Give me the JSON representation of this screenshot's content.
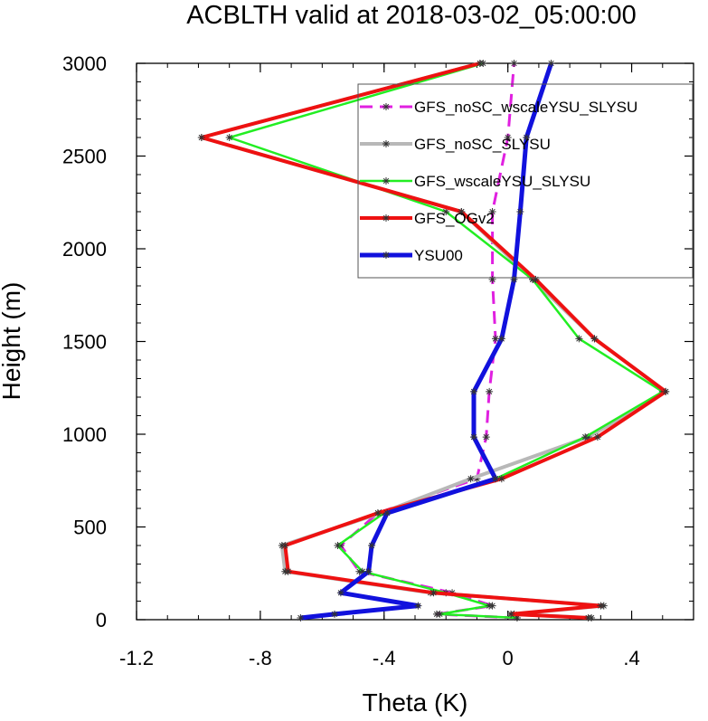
{
  "chart_data": {
    "type": "line",
    "title": "ACBLTH valid at 2018-03-02_05:00:00",
    "xlabel": "Theta (K)",
    "ylabel": "Height (m)",
    "xlim": [
      -1.2,
      0.6
    ],
    "ylim": [
      0,
      3000
    ],
    "x_ticks": [
      {
        "value": -1.2,
        "label": "-1.2"
      },
      {
        "value": -0.8,
        "label": "-.8"
      },
      {
        "value": -0.4,
        "label": "-.4"
      },
      {
        "value": 0,
        "label": "0"
      },
      {
        "value": 0.4,
        "label": ".4"
      }
    ],
    "y_ticks": [
      {
        "value": 0,
        "label": "0"
      },
      {
        "value": 500,
        "label": "500"
      },
      {
        "value": 1000,
        "label": "1000"
      },
      {
        "value": 1500,
        "label": "1500"
      },
      {
        "value": 2000,
        "label": "2000"
      },
      {
        "value": 2500,
        "label": "2500"
      },
      {
        "value": 3000,
        "label": "3000"
      }
    ],
    "grid": false,
    "legend_position": "top-right",
    "heights": [
      10,
      30,
      75,
      145,
      260,
      400,
      575,
      760,
      985,
      1230,
      1515,
      1835,
      2200,
      2600,
      3000
    ],
    "series": [
      {
        "name": "GFS_noSC_wscaleYSU_SLYSU",
        "color": "#e020e0",
        "dash": "14,8",
        "width": 3,
        "values": [
          0.03,
          -0.23,
          -0.05,
          -0.18,
          -0.48,
          -0.54,
          -0.42,
          -0.1,
          -0.07,
          -0.06,
          -0.04,
          -0.05,
          -0.05,
          0.0,
          0.02
        ]
      },
      {
        "name": "GFS_noSC_SLYSU",
        "color": "#b8b8b8",
        "dash": "",
        "width": 4,
        "values": [
          0.27,
          0.02,
          0.31,
          -0.25,
          -0.72,
          -0.73,
          -0.41,
          -0.12,
          0.26,
          0.51,
          0.28,
          0.08,
          -0.15,
          -0.99,
          -0.09
        ]
      },
      {
        "name": "GFS_wscaleYSU_SLYSU",
        "color": "#22ee22",
        "dash": "",
        "width": 2.5,
        "values": [
          0.03,
          -0.22,
          -0.06,
          -0.2,
          -0.47,
          -0.55,
          -0.4,
          -0.04,
          0.25,
          0.5,
          0.23,
          0.08,
          -0.2,
          -0.9,
          -0.08
        ]
      },
      {
        "name": "GFS_OGv2",
        "color": "#ee1111",
        "dash": "",
        "width": 4,
        "values": [
          0.26,
          0.01,
          0.3,
          -0.24,
          -0.71,
          -0.72,
          -0.42,
          -0.02,
          0.29,
          0.51,
          0.28,
          0.09,
          -0.15,
          -0.99,
          -0.09
        ]
      },
      {
        "name": "YSU00",
        "color": "#1111dd",
        "dash": "",
        "width": 5,
        "values": [
          -0.67,
          -0.56,
          -0.29,
          -0.54,
          -0.45,
          -0.44,
          -0.39,
          -0.04,
          -0.11,
          -0.11,
          -0.02,
          0.02,
          0.04,
          0.06,
          0.14
        ]
      }
    ]
  }
}
